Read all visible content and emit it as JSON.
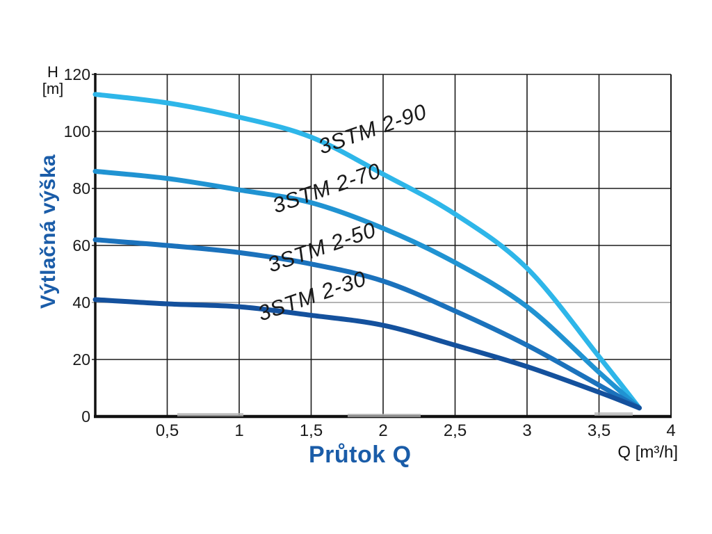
{
  "chart_data": {
    "type": "line",
    "title": "",
    "xlabel": "Průtok Q",
    "xlabel_unit": "Q [m³/h]",
    "ylabel": "Výtlačná výška",
    "ylabel_unit_line1": "H",
    "ylabel_unit_line2": "[m]",
    "xlim": [
      0,
      4
    ],
    "ylim": [
      0,
      120
    ],
    "grid": true,
    "legend_position": "inline-rotated-labels",
    "x_tick_values": [
      0.5,
      1,
      1.5,
      2,
      2.5,
      3,
      3.5,
      4
    ],
    "x_tick_labels": [
      "0,5",
      "1",
      "1,5",
      "2",
      "2,5",
      "3",
      "3,5",
      "4"
    ],
    "y_tick_values": [
      120,
      100,
      80,
      60,
      40,
      20,
      0
    ],
    "y_tick_labels": [
      "120",
      "100",
      "80",
      "60",
      "40",
      "20",
      "0"
    ],
    "series": [
      {
        "name": "3STM 2-90",
        "color": "#2EB6E9",
        "points": [
          [
            0,
            113
          ],
          [
            0.5,
            110
          ],
          [
            1,
            105
          ],
          [
            1.5,
            98
          ],
          [
            2,
            85
          ],
          [
            2.5,
            71
          ],
          [
            3,
            52
          ],
          [
            3.5,
            21
          ],
          [
            3.78,
            3
          ]
        ]
      },
      {
        "name": "3STM 2-70",
        "color": "#2093D2",
        "points": [
          [
            0,
            86
          ],
          [
            0.5,
            83.5
          ],
          [
            1,
            79.5
          ],
          [
            1.5,
            75
          ],
          [
            2,
            66
          ],
          [
            2.5,
            54
          ],
          [
            3,
            38.5
          ],
          [
            3.5,
            15.5
          ],
          [
            3.78,
            3
          ]
        ]
      },
      {
        "name": "3STM 2-50",
        "color": "#1B72BC",
        "points": [
          [
            0,
            62
          ],
          [
            0.5,
            60
          ],
          [
            1,
            57.5
          ],
          [
            1.5,
            53.5
          ],
          [
            2,
            47.5
          ],
          [
            2.5,
            37
          ],
          [
            3,
            25
          ],
          [
            3.5,
            11
          ],
          [
            3.78,
            3
          ]
        ]
      },
      {
        "name": "3STM 2-30",
        "color": "#14519D",
        "points": [
          [
            0,
            41
          ],
          [
            0.5,
            39.5
          ],
          [
            1,
            38.5
          ],
          [
            1.5,
            35.5
          ],
          [
            2,
            32
          ],
          [
            2.5,
            25
          ],
          [
            3,
            17.5
          ],
          [
            3.5,
            8.5
          ],
          [
            3.78,
            3
          ]
        ]
      }
    ],
    "colors": {
      "axis_title_blue": "#1A5CA8",
      "axis_line": "#111111",
      "grid": "#1b1b1b",
      "grid_light": "#9b9b9b",
      "tick_text": "#1a1a1a"
    }
  }
}
